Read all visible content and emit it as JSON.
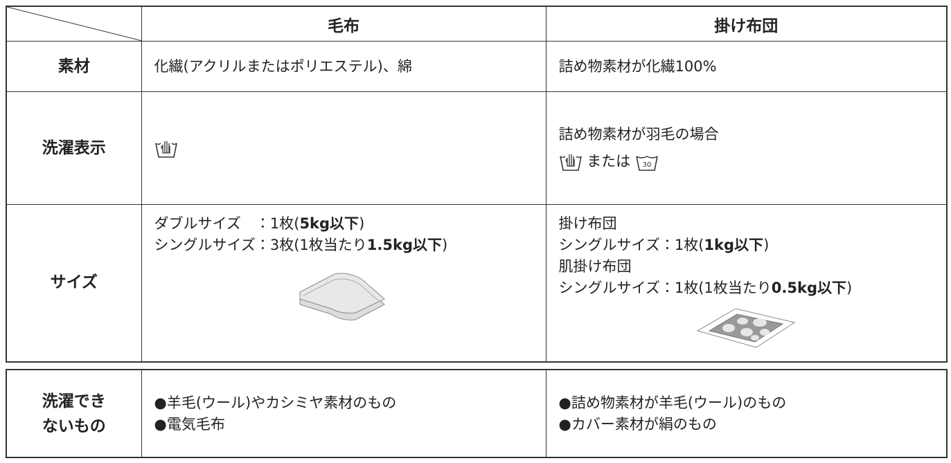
{
  "table": {
    "columns": [
      "毛布",
      "掛け布団"
    ],
    "rows": [
      {
        "label": "素材",
        "cells": [
          [
            [
              {
                "text": "化繊(アクリルまたはポリエステル)、綿"
              }
            ]
          ],
          [
            [
              {
                "text": "詰め物素材が化繊100%"
              }
            ]
          ]
        ]
      },
      {
        "label": "洗濯表示",
        "futon_note": "詰め物素材が羽毛の場合",
        "or": "または",
        "temperature": "30"
      },
      {
        "label": "サイズ",
        "cells": [
          [
            [
              {
                "text": "ダブルサイズ　：1枚("
              },
              {
                "text": "5kg以下",
                "bold": true
              },
              {
                "text": ")"
              }
            ],
            [
              {
                "text": "シングルサイズ：3枚(1枚当たり"
              },
              {
                "text": "1.5kg以下",
                "bold": true
              },
              {
                "text": ")"
              }
            ]
          ],
          [
            [
              {
                "text": "掛け布団"
              }
            ],
            [
              {
                "text": "シングルサイズ：1枚("
              },
              {
                "text": "1kg以下",
                "bold": true
              },
              {
                "text": ")"
              }
            ],
            [
              {
                "text": "肌掛け布団"
              }
            ],
            [
              {
                "text": "シングルサイズ：1枚(1枚当たり"
              },
              {
                "text": "0.5kg以下",
                "bold": true
              },
              {
                "text": ")"
              }
            ]
          ]
        ]
      }
    ]
  },
  "not_washable": {
    "label": [
      "洗濯でき",
      "ないもの"
    ],
    "cells": [
      [
        [
          {
            "text": "●羊毛(ウール)やカシミヤ素材のもの"
          }
        ],
        [
          {
            "text": "●電気毛布"
          }
        ]
      ],
      [
        [
          {
            "text": "●詰め物素材が羊毛(ウール)のもの"
          }
        ],
        [
          {
            "text": "●カバー素材が絹のもの"
          }
        ]
      ]
    ]
  }
}
